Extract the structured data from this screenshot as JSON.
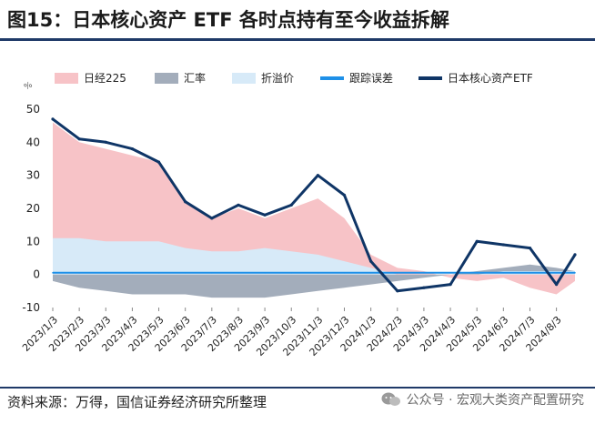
{
  "header": {
    "title": "图15：日本核心资产 ETF 各时点持有至今收益拆解"
  },
  "footer": {
    "source": "资料来源：万得，国信证券经济研究所整理",
    "watermark": "公众号 · 宏观大类资产配置研究"
  },
  "colors": {
    "nikkei": "#f7c3c7",
    "fx": "#a3adbb",
    "premium": "#d7eaf8",
    "tracking": "#1e90e8",
    "etf": "#0f3566"
  },
  "chart_data": {
    "type": "area",
    "unit_label": "%",
    "ylim": [
      -10,
      50
    ],
    "yticks": [
      "50",
      "40",
      "30",
      "20",
      "10",
      "0",
      "-10"
    ],
    "x_ticks": [
      "2023/1/3",
      "2023/2/3",
      "2023/3/3",
      "2023/4/3",
      "2023/5/3",
      "2023/6/3",
      "2023/7/3",
      "2023/8/3",
      "2023/9/3",
      "2023/10/3",
      "2023/11/3",
      "2023/12/3",
      "2024/1/3",
      "2024/2/3",
      "2024/3/3",
      "2024/4/3",
      "2024/5/3",
      "2024/6/3",
      "2024/7/3",
      "2024/8/3"
    ],
    "x_index": [
      0,
      1,
      2,
      3,
      4,
      5,
      6,
      7,
      8,
      9,
      10,
      11,
      12,
      13,
      14,
      15,
      16,
      17,
      18,
      19,
      19.7
    ],
    "legend": [
      "日经225",
      "汇率",
      "折溢价",
      "跟踪误差",
      "日本核心资产ETF"
    ],
    "series": [
      {
        "name": "日经225",
        "kind": "area",
        "values": [
          46,
          40,
          38,
          36,
          34,
          22,
          17,
          20,
          17,
          20,
          23,
          17,
          6,
          2,
          1,
          -1,
          -2,
          -1,
          -4,
          -6,
          -2
        ]
      },
      {
        "name": "汇率",
        "kind": "area",
        "values": [
          -2,
          -4,
          -5,
          -6,
          -6,
          -6,
          -7,
          -7,
          -7,
          -6,
          -5,
          -4,
          -3,
          -2,
          -1,
          0,
          1,
          2,
          3,
          2,
          1
        ]
      },
      {
        "name": "折溢价",
        "kind": "area",
        "values": [
          11,
          11,
          10,
          10,
          10,
          8,
          7,
          7,
          8,
          7,
          6,
          4,
          2,
          0,
          0,
          0,
          0,
          1,
          1,
          1,
          1
        ]
      },
      {
        "name": "跟踪误差",
        "kind": "line",
        "values": [
          0.5,
          0.5,
          0.5,
          0.5,
          0.5,
          0.5,
          0.5,
          0.5,
          0.5,
          0.5,
          0.5,
          0.5,
          0.5,
          0.5,
          0.5,
          0.5,
          0.5,
          0.5,
          0.5,
          0.5,
          0.5
        ]
      },
      {
        "name": "日本核心资产ETF",
        "kind": "line",
        "values": [
          47,
          41,
          40,
          38,
          34,
          22,
          17,
          21,
          18,
          21,
          30,
          24,
          4,
          -5,
          -4,
          -3,
          10,
          9,
          8,
          -3,
          6
        ]
      }
    ]
  }
}
